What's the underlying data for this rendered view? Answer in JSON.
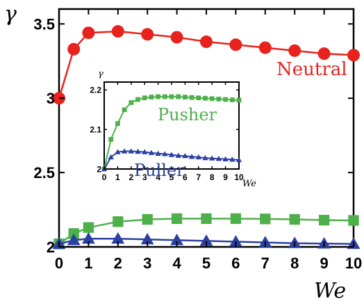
{
  "chart_data": {
    "type": "line",
    "main": {
      "xlabel": "We",
      "ylabel": "γ",
      "xlim": [
        0,
        10
      ],
      "ylim": [
        2.0,
        3.6
      ],
      "xticks": [
        "0",
        "1",
        "2",
        "3",
        "4",
        "5",
        "6",
        "7",
        "8",
        "9",
        "10"
      ],
      "yticks": [
        "2",
        "2.5",
        "3",
        "3.5"
      ],
      "series": [
        {
          "name": "Neutral",
          "color": "#e8221d",
          "marker": "circle",
          "x": [
            0,
            0.5,
            1,
            2,
            3,
            4,
            5,
            6,
            7,
            8,
            9,
            10
          ],
          "y": [
            3.0,
            3.33,
            3.44,
            3.45,
            3.43,
            3.41,
            3.38,
            3.36,
            3.34,
            3.32,
            3.3,
            3.29
          ]
        },
        {
          "name": "Pusher",
          "color": "#4db04a",
          "marker": "square",
          "x": [
            0,
            0.5,
            1,
            2,
            3,
            4,
            5,
            6,
            7,
            8,
            9,
            10
          ],
          "y": [
            2.02,
            2.09,
            2.13,
            2.17,
            2.185,
            2.19,
            2.19,
            2.19,
            2.188,
            2.185,
            2.18,
            2.178
          ]
        },
        {
          "name": "Puller",
          "color": "#2b40a0",
          "marker": "triangle",
          "x": [
            0,
            0.5,
            1,
            2,
            3,
            4,
            5,
            6,
            7,
            8,
            9,
            10
          ],
          "y": [
            2.02,
            2.045,
            2.055,
            2.055,
            2.05,
            2.045,
            2.04,
            2.035,
            2.03,
            2.025,
            2.022,
            2.02
          ]
        }
      ]
    },
    "inset": {
      "xlabel": "We",
      "ylabel": "γ",
      "xlim": [
        0,
        10
      ],
      "ylim": [
        2.0,
        2.22
      ],
      "xticks": [
        "0",
        "1",
        "2",
        "3",
        "4",
        "5",
        "6",
        "7",
        "8",
        "9",
        "10"
      ],
      "yticks": [
        "2",
        "2.1",
        "2.2"
      ],
      "series": [
        {
          "name": "Pusher",
          "color": "#4db04a",
          "marker": "square",
          "x": [
            0,
            0.5,
            1,
            1.5,
            2,
            2.5,
            3,
            3.5,
            4,
            4.5,
            5,
            5.5,
            6,
            6.5,
            7,
            7.5,
            8,
            8.5,
            9,
            9.5,
            10
          ],
          "y": [
            2.0,
            2.075,
            2.115,
            2.15,
            2.168,
            2.176,
            2.18,
            2.182,
            2.183,
            2.183,
            2.183,
            2.183,
            2.182,
            2.181,
            2.18,
            2.179,
            2.178,
            2.177,
            2.176,
            2.175,
            2.174
          ]
        },
        {
          "name": "Puller",
          "color": "#2b40a0",
          "marker": "triangle",
          "x": [
            0,
            0.5,
            1,
            1.5,
            2,
            2.5,
            3,
            3.5,
            4,
            4.5,
            5,
            5.5,
            6,
            6.5,
            7,
            7.5,
            8,
            8.5,
            9,
            9.5,
            10
          ],
          "y": [
            2.0,
            2.03,
            2.043,
            2.045,
            2.045,
            2.044,
            2.043,
            2.041,
            2.039,
            2.038,
            2.036,
            2.034,
            2.033,
            2.031,
            2.03,
            2.028,
            2.027,
            2.026,
            2.025,
            2.024,
            2.023
          ]
        }
      ]
    }
  }
}
